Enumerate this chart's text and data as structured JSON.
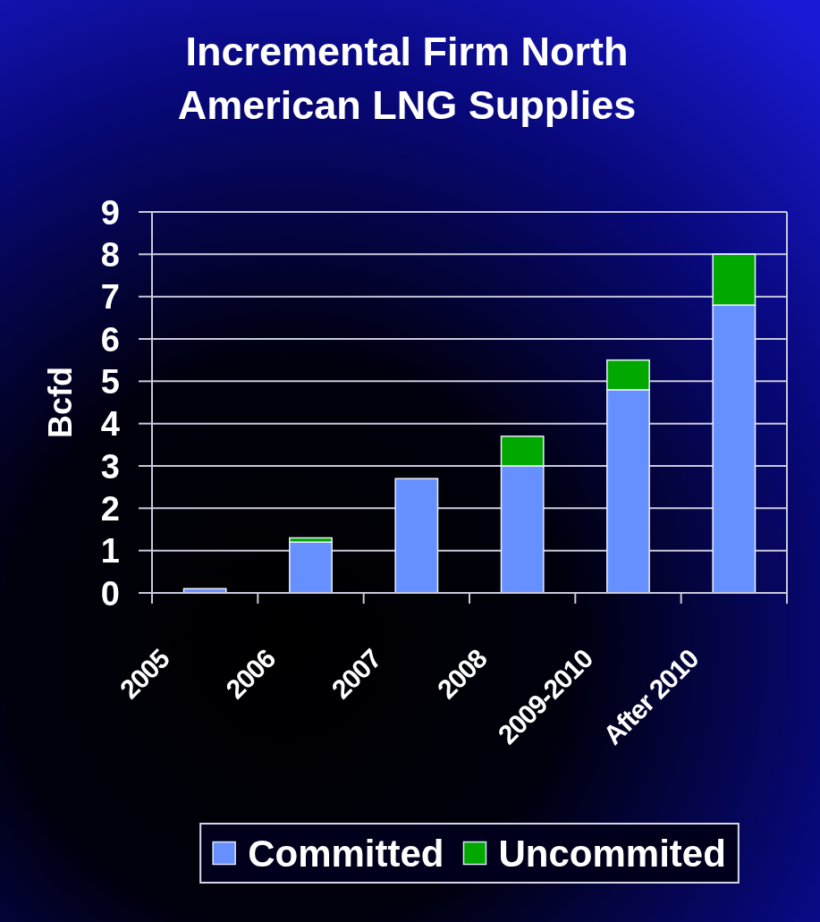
{
  "chart_data": {
    "type": "bar",
    "title": "Incremental Firm North American LNG Supplies",
    "ylabel": "Bcfd",
    "categories": [
      "2005",
      "2006",
      "2007",
      "2008",
      "2009-2010",
      "After 2010"
    ],
    "series": [
      {
        "name": "Committed",
        "color": "#6690ff",
        "values": [
          0.1,
          1.2,
          2.7,
          3.0,
          4.8,
          6.8
        ]
      },
      {
        "name": "Uncommited",
        "color": "#00a800",
        "values": [
          0,
          0.1,
          0,
          0.7,
          0.7,
          1.2
        ]
      }
    ],
    "stacked": true,
    "ylim": [
      0,
      9
    ],
    "yticks": [
      0,
      1,
      2,
      3,
      4,
      5,
      6,
      7,
      8,
      9
    ],
    "grid": "y",
    "legend": "bottom"
  }
}
